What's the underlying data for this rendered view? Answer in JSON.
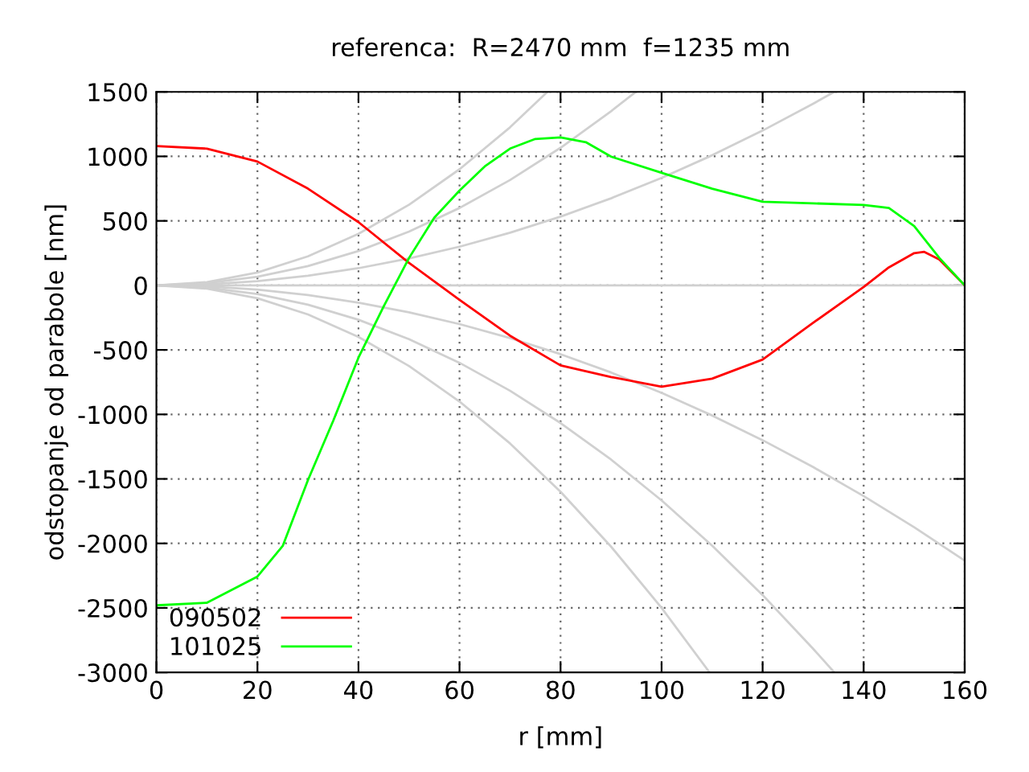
{
  "chart_data": {
    "type": "line",
    "title": "referenca:  R=2470 mm  f=1235 mm",
    "xlabel": "r [mm]",
    "ylabel": "odstopanje od parabole [nm]",
    "xlim": [
      0,
      160
    ],
    "xticks": [
      0,
      20,
      40,
      60,
      80,
      100,
      120,
      140,
      160
    ],
    "ylim": [
      -3000,
      1500
    ],
    "yticks": [
      -3000,
      -2500,
      -2000,
      -1500,
      -1000,
      -500,
      0,
      500,
      1000,
      1500
    ],
    "grid": true,
    "legend": "bottom left",
    "line_style": "solid",
    "marker": "none",
    "series": [
      {
        "color": "#d0d0d0",
        "x": [
          0,
          10,
          20,
          30,
          40,
          50,
          60,
          70,
          77.4
        ],
        "values": [
          0,
          25,
          100,
          225,
          400,
          625,
          900,
          1225,
          1500
        ]
      },
      {
        "color": "#d0d0d0",
        "x": [
          0,
          10,
          20,
          30,
          40,
          50,
          60,
          70,
          80,
          90,
          94.9
        ],
        "values": [
          0,
          16.7,
          66.7,
          150,
          266.7,
          416.7,
          600,
          816.7,
          1066.7,
          1350,
          1500
        ]
      },
      {
        "color": "#d0d0d0",
        "x": [
          0,
          10,
          20,
          30,
          40,
          50,
          60,
          70,
          80,
          90,
          100,
          110,
          120,
          130,
          134.2
        ],
        "values": [
          0,
          8.3,
          33.3,
          75,
          133.3,
          208.3,
          300,
          408.3,
          533.3,
          675,
          833.3,
          1008.3,
          1200,
          1408.3,
          1500
        ]
      },
      {
        "color": "#d0d0d0",
        "x": [
          0,
          160
        ],
        "values": [
          0,
          0
        ]
      },
      {
        "color": "#d0d0d0",
        "x": [
          0,
          10,
          20,
          30,
          40,
          50,
          60,
          70,
          80,
          90,
          100,
          110,
          120,
          130,
          140,
          150,
          160
        ],
        "values": [
          0,
          -8.3,
          -33.3,
          -75,
          -133.3,
          -208.3,
          -300,
          -408.3,
          -533.3,
          -675,
          -833.3,
          -1008.3,
          -1200,
          -1408.3,
          -1633.3,
          -1875,
          -2133.3
        ]
      },
      {
        "color": "#d0d0d0",
        "x": [
          0,
          10,
          20,
          30,
          40,
          50,
          60,
          70,
          80,
          90,
          100,
          110,
          120,
          130,
          134.2
        ],
        "values": [
          0,
          -16.7,
          -66.7,
          -150,
          -266.7,
          -416.7,
          -600,
          -816.7,
          -1066.7,
          -1350,
          -1666.7,
          -2016.7,
          -2400,
          -2816.7,
          -3000
        ]
      },
      {
        "color": "#d0d0d0",
        "x": [
          0,
          10,
          20,
          30,
          40,
          50,
          60,
          70,
          80,
          90,
          100,
          109.5
        ],
        "values": [
          0,
          -25,
          -100,
          -225,
          -400,
          -625,
          -900,
          -1225,
          -1600,
          -2025,
          -2500,
          -3000
        ]
      },
      {
        "name": "090502",
        "color": "#ff0000",
        "x": [
          0,
          10,
          20,
          30,
          40,
          50,
          60,
          70,
          80,
          90,
          100,
          110,
          120,
          130,
          140,
          145,
          150,
          152,
          155,
          160
        ],
        "values": [
          1080,
          1060,
          960,
          750,
          490,
          175,
          -112,
          -390,
          -620,
          -710,
          -785,
          -723,
          -575,
          -290,
          -12,
          140,
          250,
          260,
          200,
          0
        ]
      },
      {
        "name": "101025",
        "color": "#00ff00",
        "x": [
          0,
          10,
          20,
          25,
          30,
          35,
          40,
          45,
          50,
          55,
          60,
          65,
          70,
          75,
          80,
          85,
          90,
          100,
          110,
          120,
          130,
          140,
          145,
          150,
          155,
          160
        ],
        "values": [
          -2480,
          -2460,
          -2257,
          -2020,
          -1509,
          -1050,
          -560,
          -162,
          212,
          524,
          735,
          922,
          1060,
          1135,
          1147,
          1110,
          998,
          873,
          750,
          648,
          636,
          624,
          600,
          460,
          212,
          0
        ]
      }
    ]
  }
}
